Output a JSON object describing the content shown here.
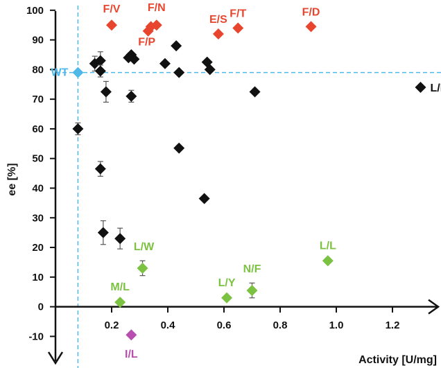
{
  "chart_data": {
    "type": "scatter",
    "xlabel": "Activity [U/mg]",
    "ylabel": "ee [%]",
    "xlim": [
      -0.02,
      1.38
    ],
    "ylim": [
      -17,
      100
    ],
    "x_ticks": [
      0.2,
      0.4,
      0.6,
      0.8,
      1.0,
      1.2
    ],
    "x_tick_labels": [
      "0.2",
      "0.4",
      "0.6",
      "0.8",
      "1.0",
      "1.2"
    ],
    "y_ticks": [
      -10,
      0,
      10,
      20,
      30,
      40,
      50,
      60,
      70,
      80,
      90,
      100
    ],
    "y_tick_labels": [
      "-10",
      "0",
      "10",
      "20",
      "30",
      "40",
      "50",
      "60",
      "70",
      "80",
      "90",
      "100"
    ],
    "grid": false,
    "reference_lines": [
      {
        "orientation": "vertical",
        "value": 0.08,
        "color": "#4fb8e8"
      },
      {
        "orientation": "horizontal",
        "value": 79,
        "color": "#4fb8e8"
      }
    ],
    "colors": {
      "black": "#111111",
      "red": "#e8452e",
      "green": "#7cc242",
      "purple": "#b84fb0",
      "blue": "#4fb8e8"
    },
    "series": [
      {
        "color": "#4fb8e8",
        "points": [
          {
            "x": 0.08,
            "y": 79,
            "label": "WT"
          }
        ]
      },
      {
        "color": "#e8452e",
        "points": [
          {
            "x": 0.2,
            "y": 95,
            "label": "F/V"
          },
          {
            "x": 0.33,
            "y": 93,
            "label": "F/P"
          },
          {
            "x": 0.34,
            "y": 94.5
          },
          {
            "x": 0.36,
            "y": 95,
            "label": "F/N"
          },
          {
            "x": 0.58,
            "y": 92,
            "label": "E/S"
          },
          {
            "x": 0.65,
            "y": 94,
            "label": "F/T"
          },
          {
            "x": 0.91,
            "y": 94.5,
            "label": "F/D"
          }
        ]
      },
      {
        "color": "#7cc242",
        "points": [
          {
            "x": 0.23,
            "y": 1.5,
            "label": "M/L"
          },
          {
            "x": 0.31,
            "y": 13,
            "err": 2.5,
            "label": "L/W"
          },
          {
            "x": 0.61,
            "y": 3,
            "label": "L/Y"
          },
          {
            "x": 0.7,
            "y": 5.5,
            "err": 2.5,
            "label": "N/F"
          },
          {
            "x": 0.97,
            "y": 15.5,
            "label": "L/L"
          }
        ]
      },
      {
        "color": "#b84fb0",
        "points": [
          {
            "x": 0.27,
            "y": -9.5,
            "label": "I/L"
          }
        ]
      },
      {
        "color": "#111111",
        "points": [
          {
            "x": 0.08,
            "y": 60,
            "err": 2
          },
          {
            "x": 0.14,
            "y": 82,
            "err": 2.5
          },
          {
            "x": 0.16,
            "y": 83,
            "err": 3
          },
          {
            "x": 0.16,
            "y": 79.5,
            "err": 2
          },
          {
            "x": 0.16,
            "y": 46.5,
            "err": 2.5
          },
          {
            "x": 0.17,
            "y": 25,
            "err": 4
          },
          {
            "x": 0.18,
            "y": 72.5,
            "err": 3.5
          },
          {
            "x": 0.23,
            "y": 23,
            "err": 3.5
          },
          {
            "x": 0.26,
            "y": 84
          },
          {
            "x": 0.27,
            "y": 85
          },
          {
            "x": 0.28,
            "y": 83.5
          },
          {
            "x": 0.27,
            "y": 71,
            "err": 2
          },
          {
            "x": 0.39,
            "y": 82
          },
          {
            "x": 0.43,
            "y": 88
          },
          {
            "x": 0.44,
            "y": 79
          },
          {
            "x": 0.44,
            "y": 53.5
          },
          {
            "x": 0.53,
            "y": 36.5
          },
          {
            "x": 0.54,
            "y": 82.5
          },
          {
            "x": 0.55,
            "y": 80
          },
          {
            "x": 0.71,
            "y": 72.5
          },
          {
            "x": 1.3,
            "y": 74,
            "label": "L/I"
          }
        ]
      }
    ]
  }
}
